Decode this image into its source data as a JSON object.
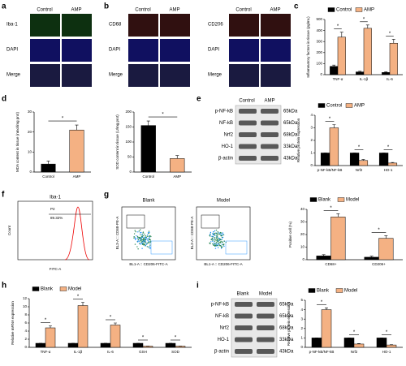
{
  "panel_labels": [
    "a",
    "b",
    "c",
    "d",
    "e",
    "f",
    "g",
    "h",
    "i"
  ],
  "panel_a": {
    "columns": [
      "Control",
      "AMP"
    ],
    "rows": [
      "Iba-1",
      "DAPI",
      "Merge"
    ]
  },
  "panel_b": {
    "blocks": [
      {
        "columns": [
          "Control",
          "AMP"
        ],
        "rows": [
          "CD68",
          "DAPI",
          "Merge"
        ]
      },
      {
        "columns": [
          "Control",
          "AMP"
        ],
        "rows": [
          "CD206",
          "DAPI",
          "Merge"
        ]
      }
    ]
  },
  "panel_e_blot": {
    "columns": [
      "Control",
      "AMP"
    ],
    "rows": [
      {
        "protein": "p-NF-kB",
        "size": "65kDa"
      },
      {
        "protein": "NF-kB",
        "size": "65kDa"
      },
      {
        "protein": "Nrf2",
        "size": "68kDa"
      },
      {
        "protein": "HO-1",
        "size": "33kDa"
      },
      {
        "protein": "β-actin",
        "size": "43kDa"
      }
    ]
  },
  "panel_f": {
    "title": "Iba-1",
    "gate": "P2",
    "percent": "89.32%",
    "x_label": "FITC-A",
    "y_label": "Count"
  },
  "panel_g_flow": {
    "plots": [
      "Blank",
      "Model"
    ],
    "x_label": "BL1-A :: CD206-FITC-A",
    "y_label": "BL3-A :: CD68-PE-A"
  },
  "panel_i_blot": {
    "columns": [
      "Blank",
      "Model"
    ],
    "rows": [
      {
        "protein": "p-NF-kB",
        "size": "65kDa"
      },
      {
        "protein": "NF-kB",
        "size": "65kDa"
      },
      {
        "protein": "Nrf2",
        "size": "68kDa"
      },
      {
        "protein": "HO-1",
        "size": "33kDa"
      },
      {
        "protein": "β-actin",
        "size": "43kDa"
      }
    ]
  },
  "chart_data": [
    {
      "type": "bar",
      "y_label": "Inflammatory factors in tissue (pg/mL)",
      "categories": [
        "TNF-α",
        "IL-1β",
        "IL-6"
      ],
      "series": [
        {
          "name": "Control",
          "color": "#000000",
          "values": [
            75,
            25,
            20
          ],
          "errors": [
            12,
            6,
            5
          ]
        },
        {
          "name": "AMP",
          "color": "#f4b183",
          "values": [
            340,
            420,
            285
          ],
          "errors": [
            45,
            30,
            35
          ]
        }
      ],
      "ylim": [
        0,
        500
      ],
      "yticks": [
        0,
        100,
        200,
        300,
        400,
        500
      ],
      "legend": "top",
      "sig_label": "*"
    },
    {
      "type": "bar",
      "y_label": "MDA content in tissue (nmol/mg prot)",
      "categories": [
        "Control",
        "AMP"
      ],
      "values": [
        4,
        21
      ],
      "errors": [
        1.5,
        2.5
      ],
      "colors": [
        "#000000",
        "#f4b183"
      ],
      "ylim": [
        0,
        30
      ],
      "yticks": [
        0,
        10,
        20,
        30
      ],
      "sig_label": "*"
    },
    {
      "type": "bar",
      "y_label": "SOD content in tissue (U/mg prot)",
      "categories": [
        "Control",
        "AMP"
      ],
      "values": [
        155,
        45
      ],
      "errors": [
        15,
        10
      ],
      "colors": [
        "#000000",
        "#f4b183"
      ],
      "ylim": [
        0,
        200
      ],
      "yticks": [
        0,
        50,
        100,
        150,
        200
      ],
      "sig_label": "*"
    },
    {
      "type": "bar",
      "y_label": "Relative protein expression",
      "categories": [
        "p-NF-kB/NF-kB",
        "Nrf2",
        "HO-1"
      ],
      "series": [
        {
          "name": "Control",
          "color": "#000000",
          "values": [
            1,
            1,
            1
          ],
          "errors": [
            0,
            0,
            0
          ]
        },
        {
          "name": "AMP",
          "color": "#f4b183",
          "values": [
            3.0,
            0.4,
            0.2
          ],
          "errors": [
            0.25,
            0.08,
            0.05
          ]
        }
      ],
      "ylim": [
        0,
        4
      ],
      "yticks": [
        0,
        1,
        2,
        3,
        4
      ],
      "legend": "top",
      "sig_label": "*"
    },
    {
      "type": "bar",
      "y_label": "Positive cell (%)",
      "categories": [
        "CD68+",
        "CD206+"
      ],
      "series": [
        {
          "name": "Blank",
          "color": "#000000",
          "values": [
            3,
            2
          ],
          "errors": [
            1,
            0.8
          ]
        },
        {
          "name": "Model",
          "color": "#f4b183",
          "values": [
            34,
            17
          ],
          "errors": [
            2.5,
            2
          ]
        }
      ],
      "ylim": [
        0,
        40
      ],
      "yticks": [
        0,
        10,
        20,
        30,
        40
      ],
      "legend": "top",
      "sig_label": "*"
    },
    {
      "type": "bar",
      "y_label": "Relative mRNA expression",
      "categories": [
        "TNF-α",
        "IL-1β",
        "IL-6",
        "GSH",
        "SOD"
      ],
      "series": [
        {
          "name": "Blank",
          "color": "#000000",
          "values": [
            1,
            1,
            1,
            1,
            1
          ],
          "errors": [
            0,
            0,
            0,
            0,
            0
          ]
        },
        {
          "name": "Model",
          "color": "#f4b183",
          "values": [
            4.8,
            10.3,
            5.5,
            0.3,
            0.3
          ],
          "errors": [
            0.5,
            0.8,
            0.5,
            0.05,
            0.05
          ]
        }
      ],
      "ylim": [
        0,
        12
      ],
      "yticks": [
        0,
        2,
        4,
        6,
        8,
        10,
        12
      ],
      "legend": "top",
      "sig_label": "*"
    },
    {
      "type": "bar",
      "y_label": "Relative protein expression",
      "categories": [
        "p-NF-kB/NF-kB",
        "Nrf2",
        "HO-1"
      ],
      "series": [
        {
          "name": "Blank",
          "color": "#000000",
          "values": [
            1,
            1,
            1
          ],
          "errors": [
            0,
            0,
            0
          ]
        },
        {
          "name": "Model",
          "color": "#f4b183",
          "values": [
            4.0,
            0.35,
            0.25
          ],
          "errors": [
            0.2,
            0.05,
            0.04
          ]
        }
      ],
      "ylim": [
        0,
        5
      ],
      "yticks": [
        0,
        1,
        2,
        3,
        4,
        5
      ],
      "legend": "top",
      "sig_label": "*"
    }
  ]
}
